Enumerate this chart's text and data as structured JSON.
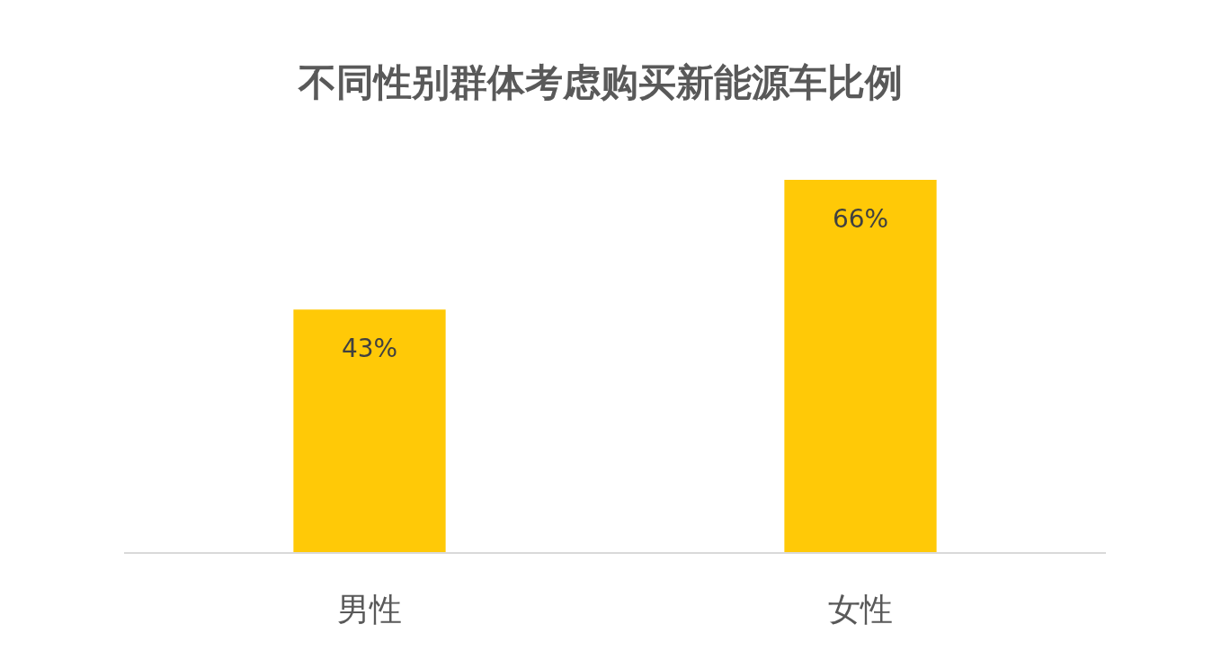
{
  "chart_data": {
    "type": "bar",
    "title": "不同性别群体考虑购买新能源车比例",
    "categories": [
      "男性",
      "女性"
    ],
    "values": [
      43,
      66
    ],
    "value_labels": [
      "43%",
      "66%"
    ],
    "color": "#ffc907"
  }
}
